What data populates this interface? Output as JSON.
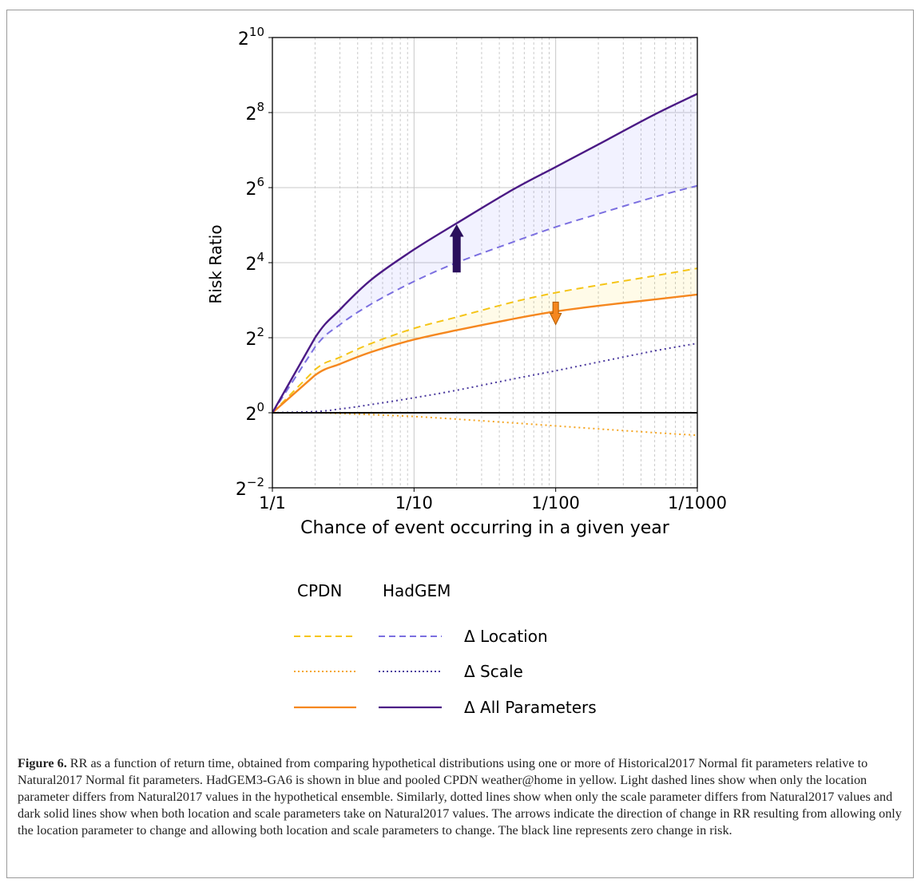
{
  "chart_data": {
    "type": "line",
    "xlabel": "Chance of event occurring in a given year",
    "ylabel": "Risk Ratio",
    "x_scale": "log",
    "y_scale": "log2",
    "xlim_return_period": [
      1,
      1000
    ],
    "ylim_log2": [
      -2,
      10
    ],
    "x_ticks": [
      "1/1",
      "1/10",
      "1/100",
      "1/1000"
    ],
    "y_ticks": [
      {
        "base": "2",
        "exp": "10"
      },
      {
        "base": "2",
        "exp": "8"
      },
      {
        "base": "2",
        "exp": "6"
      },
      {
        "base": "2",
        "exp": "4"
      },
      {
        "base": "2",
        "exp": "2"
      },
      {
        "base": "2",
        "exp": "0"
      },
      {
        "base": "2",
        "exp": "−2"
      }
    ],
    "y_tick_values_log2": [
      10,
      8,
      6,
      4,
      2,
      0,
      -2
    ],
    "grid": true,
    "x_points_return_period": [
      1,
      2,
      3,
      5,
      10,
      20,
      50,
      100,
      200,
      500,
      1000
    ],
    "series": [
      {
        "key": "cpdn_location",
        "color": "#f5c518",
        "style": "dashed",
        "values_log2": [
          0,
          1.15,
          1.48,
          1.85,
          2.25,
          2.55,
          2.95,
          3.2,
          3.4,
          3.65,
          3.85
        ]
      },
      {
        "key": "cpdn_scale",
        "color": "#f5a623",
        "style": "dotted",
        "values_log2": [
          0,
          0,
          -0.02,
          -0.05,
          -0.1,
          -0.17,
          -0.27,
          -0.35,
          -0.43,
          -0.53,
          -0.6
        ]
      },
      {
        "key": "cpdn_all",
        "color": "#f5871f",
        "style": "solid",
        "values_log2": [
          0,
          1.0,
          1.3,
          1.62,
          1.95,
          2.2,
          2.5,
          2.7,
          2.85,
          3.02,
          3.15
        ]
      },
      {
        "key": "hadgem_location",
        "color": "#7b6fe0",
        "style": "dashed",
        "values_log2": [
          0,
          1.75,
          2.35,
          2.9,
          3.5,
          4.0,
          4.55,
          4.95,
          5.3,
          5.75,
          6.05
        ]
      },
      {
        "key": "hadgem_scale",
        "color": "#4b3a9e",
        "style": "dotted",
        "values_log2": [
          0,
          0.03,
          0.1,
          0.22,
          0.4,
          0.6,
          0.9,
          1.12,
          1.35,
          1.65,
          1.85
        ]
      },
      {
        "key": "hadgem_all",
        "color": "#4b1a85",
        "style": "solid",
        "values_log2": [
          0,
          2.0,
          2.75,
          3.55,
          4.35,
          5.05,
          5.95,
          6.55,
          7.15,
          7.95,
          8.5
        ]
      }
    ],
    "zero_line_log2": 0,
    "arrows": [
      {
        "x_return_period": 20,
        "from_log2": 3.75,
        "to_log2": 5.0,
        "color": "#2a0f5c"
      },
      {
        "x_return_period": 100,
        "from_log2": 2.95,
        "to_log2": 2.35,
        "color": "#f5871f"
      }
    ],
    "legend": {
      "headers": [
        "CPDN",
        "HadGEM"
      ],
      "labels": [
        "Δ Location",
        "Δ Scale",
        "Δ All Parameters"
      ]
    }
  },
  "caption": {
    "label": "Figure 6.",
    "text": " RR as a function of return time, obtained from comparing hypothetical distributions using one or more of Historical2017 Normal fit parameters relative to Natural2017 Normal fit parameters. HadGEM3-GA6 is shown in blue and pooled CPDN weather@home in yellow. Light dashed lines show when only the location parameter differs from Natural2017 values in the hypothetical ensemble. Similarly, dotted lines show when only the scale parameter differs from Natural2017 values and dark solid lines show when both location and scale parameters take on Natural2017 values. The arrows indicate the direction of change in RR resulting from allowing only the location parameter to change and allowing both location and scale parameters to change. The black line represents zero change in risk."
  }
}
